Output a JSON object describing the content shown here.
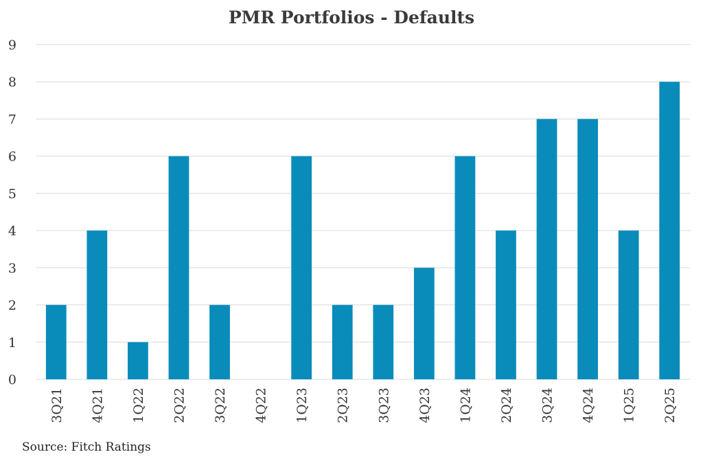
{
  "chart_data": {
    "type": "bar",
    "title": "PMR Portfolios - Defaults",
    "categories": [
      "3Q21",
      "4Q21",
      "1Q22",
      "2Q22",
      "3Q22",
      "4Q22",
      "1Q23",
      "2Q23",
      "3Q23",
      "4Q23",
      "1Q24",
      "2Q24",
      "3Q24",
      "4Q24",
      "1Q25",
      "2Q25"
    ],
    "values": [
      2,
      4,
      1,
      6,
      2,
      0,
      6,
      2,
      2,
      3,
      6,
      4,
      7,
      7,
      4,
      8
    ],
    "xlabel": "",
    "ylabel": "",
    "ylim": [
      0,
      9
    ],
    "yticks": [
      "0",
      "1",
      "2",
      "3",
      "4",
      "5",
      "6",
      "7",
      "8",
      "9"
    ],
    "grid": true,
    "bar_color": "#0a8cbb",
    "source": "Source: Fitch Ratings"
  }
}
